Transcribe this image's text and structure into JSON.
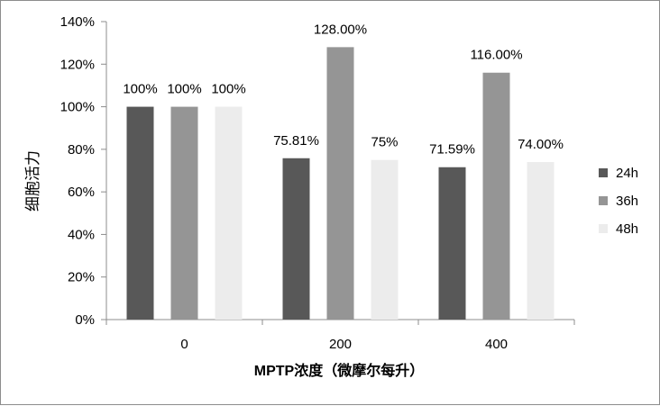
{
  "chart_data": {
    "type": "bar",
    "title": "",
    "xlabel": "MPTP浓度（微摩尔每升）",
    "ylabel": "细胞活力",
    "categories": [
      "0",
      "200",
      "400"
    ],
    "ylim": [
      0,
      140
    ],
    "yticks": [
      "0%",
      "20%",
      "40%",
      "60%",
      "80%",
      "100%",
      "120%",
      "140%"
    ],
    "ytick_values": [
      0,
      20,
      40,
      60,
      80,
      100,
      120,
      140
    ],
    "grid": false,
    "legend_position": "right",
    "series": [
      {
        "name": "24h",
        "color": "#585858",
        "values": [
          100,
          75.81,
          71.59
        ],
        "labels": [
          "100%",
          "75.81%",
          "71.59%"
        ]
      },
      {
        "name": "36h",
        "color": "#959595",
        "values": [
          100,
          128,
          116
        ],
        "labels": [
          "100%",
          "128.00%",
          "116.00%"
        ]
      },
      {
        "name": "48h",
        "color": "#ececec",
        "values": [
          100,
          75,
          74
        ],
        "labels": [
          "100%",
          "75%",
          "74.00%"
        ]
      }
    ]
  }
}
